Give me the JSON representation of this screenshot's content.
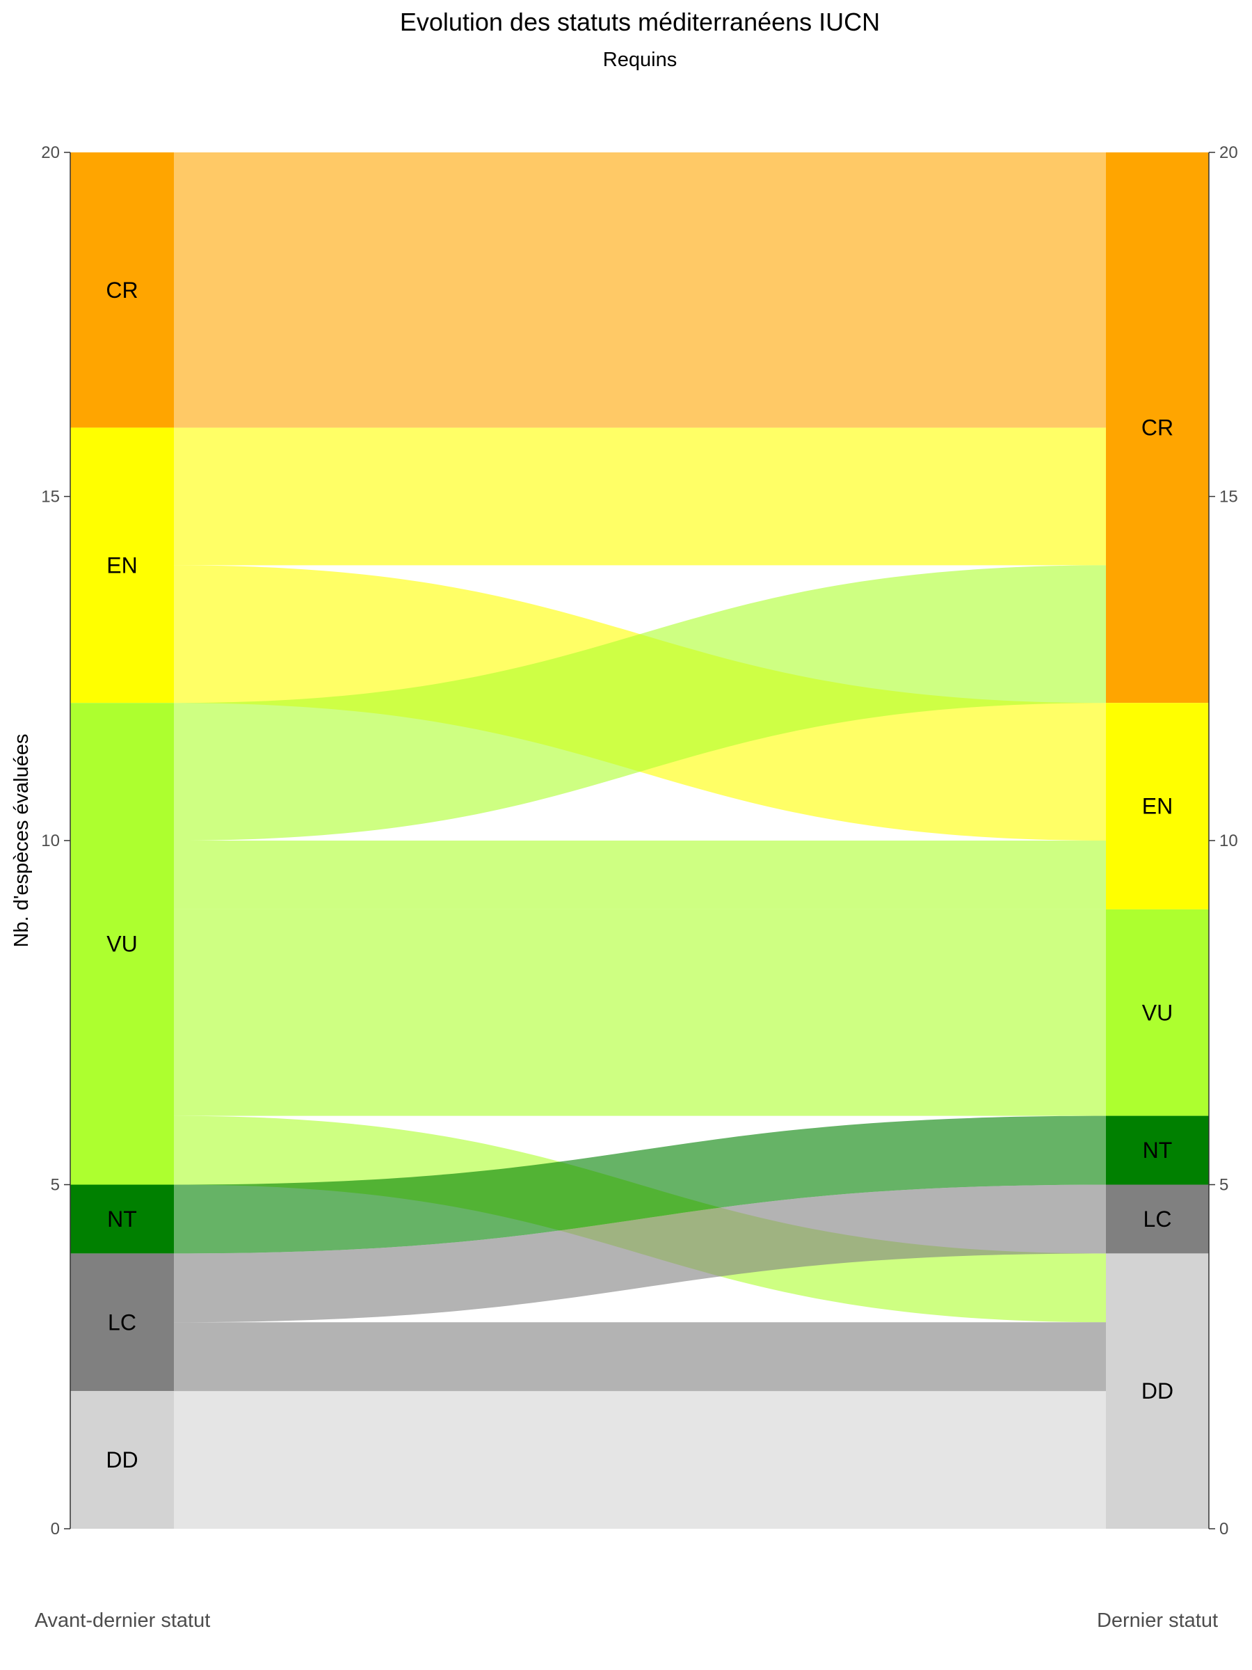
{
  "chart_data": {
    "type": "alluvial",
    "title": "Evolution des statuts méditerranéens IUCN",
    "subtitle": "Requins",
    "ylabel": "Nb. d'espèces évaluées",
    "ylim": [
      0,
      20
    ],
    "y_ticks": [
      0,
      5,
      10,
      15,
      20
    ],
    "axes": [
      "Avant-dernier statut",
      "Dernier statut"
    ],
    "categories": [
      "CR",
      "EN",
      "VU",
      "NT",
      "LC",
      "DD"
    ],
    "colors": {
      "CR": "#FFA500",
      "EN": "#FFFF00",
      "VU": "#ADFF2F",
      "NT": "#008000",
      "LC": "#808080",
      "DD": "#D3D3D3"
    },
    "strata": {
      "Avant-dernier statut": [
        {
          "status": "CR",
          "count": 4
        },
        {
          "status": "EN",
          "count": 4
        },
        {
          "status": "VU",
          "count": 7
        },
        {
          "status": "NT",
          "count": 1
        },
        {
          "status": "LC",
          "count": 2
        },
        {
          "status": "DD",
          "count": 2
        }
      ],
      "Dernier statut": [
        {
          "status": "CR",
          "count": 8
        },
        {
          "status": "EN",
          "count": 3
        },
        {
          "status": "VU",
          "count": 3
        },
        {
          "status": "NT",
          "count": 1
        },
        {
          "status": "LC",
          "count": 1
        },
        {
          "status": "DD",
          "count": 4
        }
      ]
    },
    "flows": [
      {
        "from": "CR",
        "to": "CR",
        "count": 4
      },
      {
        "from": "EN",
        "to": "CR",
        "count": 2
      },
      {
        "from": "EN",
        "to": "EN",
        "count": 2
      },
      {
        "from": "VU",
        "to": "CR",
        "count": 2
      },
      {
        "from": "VU",
        "to": "EN",
        "count": 1
      },
      {
        "from": "VU",
        "to": "VU",
        "count": 3
      },
      {
        "from": "VU",
        "to": "DD",
        "count": 1
      },
      {
        "from": "NT",
        "to": "NT",
        "count": 1
      },
      {
        "from": "LC",
        "to": "LC",
        "count": 1
      },
      {
        "from": "LC",
        "to": "DD",
        "count": 1
      },
      {
        "from": "DD",
        "to": "DD",
        "count": 2
      }
    ]
  }
}
